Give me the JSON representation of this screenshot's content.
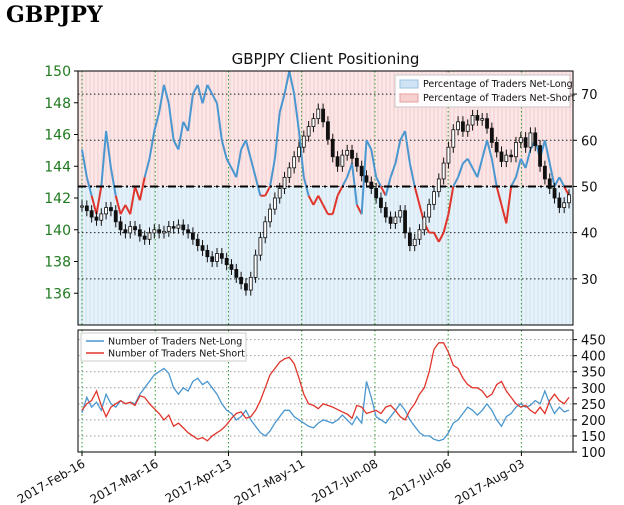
{
  "page_title": "GBPJPY",
  "chart_data": [
    {
      "type": "line",
      "title": "GBPJPY Client Positioning",
      "dates": [
        "2017-Feb-16",
        "2017-Mar-16",
        "2017-Apr-13",
        "2017-May-11",
        "2017-Jun-08",
        "2017-Jul-06",
        "2017-Aug-03"
      ],
      "price_axis": {
        "ylim": [
          134,
          150
        ],
        "ticks": [
          136,
          138,
          140,
          142,
          144,
          146,
          148,
          150
        ],
        "color": "#1f7a1f"
      },
      "percent_axis": {
        "ylim": [
          20,
          75
        ],
        "ticks": [
          30,
          40,
          50,
          60,
          70
        ]
      },
      "reference_line": 50,
      "legend": {
        "position": "top-right",
        "entries": [
          "Percentage of Traders Net-Long",
          "Percentage of Traders Net-Short"
        ]
      },
      "colors": {
        "long": "#4a97d0",
        "short": "#e0352b",
        "long_fill": "#cfe3f4",
        "short_fill": "#f6cfcf",
        "candles": "#111111",
        "grid": "#2e9a2e"
      },
      "price": [
        141.5,
        141.2,
        140.8,
        140.6,
        141.0,
        141.4,
        141.2,
        140.5,
        140.0,
        139.8,
        140.2,
        140.0,
        139.6,
        139.4,
        139.8,
        140.0,
        139.8,
        139.9,
        140.2,
        140.1,
        140.3,
        140.0,
        139.8,
        139.4,
        139.0,
        138.7,
        138.3,
        138.0,
        138.5,
        138.2,
        137.8,
        137.5,
        137.0,
        136.6,
        136.2,
        137.0,
        138.4,
        139.5,
        140.5,
        141.3,
        142.0,
        142.6,
        143.3,
        143.9,
        144.6,
        145.2,
        145.9,
        146.5,
        147.0,
        147.6,
        146.8,
        145.7,
        144.6,
        144.0,
        144.7,
        145.0,
        144.5,
        144.0,
        143.4,
        143.0,
        142.6,
        142.0,
        141.4,
        140.8,
        140.4,
        140.8,
        141.2,
        139.8,
        139.0,
        139.4,
        140.0,
        140.8,
        141.6,
        142.4,
        143.2,
        144.2,
        145.2,
        146.3,
        146.8,
        146.2,
        146.6,
        147.2,
        146.9,
        147.0,
        146.4,
        145.5,
        144.9,
        144.3,
        144.7,
        144.6,
        145.5,
        145.8,
        145.2,
        146.1,
        145.3,
        144.0,
        143.2,
        142.6,
        142.0,
        141.4,
        141.7,
        142.2
      ],
      "percent_long": [
        58,
        52,
        48,
        44,
        50,
        62,
        54,
        48,
        44,
        46,
        44,
        50,
        47,
        52,
        56,
        62,
        66,
        72,
        68,
        60,
        58,
        64,
        62,
        70,
        72,
        68,
        72,
        70,
        68,
        60,
        56,
        54,
        52,
        58,
        60,
        56,
        52,
        48,
        48,
        50,
        56,
        66,
        70,
        75,
        70,
        62,
        52,
        48,
        46,
        48,
        46,
        44,
        44,
        48,
        50,
        52,
        55,
        46,
        44,
        60,
        58,
        52,
        50,
        48,
        52,
        55,
        60,
        62,
        55,
        50,
        46,
        42,
        40,
        40,
        38,
        40,
        44,
        50,
        52,
        55,
        56,
        54,
        52,
        56,
        60,
        56,
        50,
        46,
        42,
        50,
        52,
        56,
        54,
        58,
        60,
        56,
        60,
        55,
        50,
        52,
        50,
        48
      ],
      "panels": {
        "price_panel": "top",
        "counts_panel": "bottom"
      }
    },
    {
      "type": "line",
      "legend": {
        "position": "top-left",
        "entries": [
          "Number of Traders Net-Long",
          "Number of Traders Net-Short"
        ]
      },
      "ylim": [
        100,
        480
      ],
      "ticks": [
        100,
        150,
        200,
        250,
        300,
        350,
        400,
        450
      ],
      "series": [
        {
          "name": "Number of Traders Net-Long",
          "color": "#4a97d0",
          "values": [
            222,
            270,
            240,
            255,
            230,
            280,
            250,
            240,
            260,
            250,
            255,
            250,
            280,
            300,
            320,
            340,
            350,
            360,
            345,
            300,
            280,
            300,
            290,
            320,
            330,
            310,
            320,
            300,
            280,
            250,
            230,
            220,
            200,
            210,
            230,
            200,
            180,
            160,
            150,
            165,
            190,
            210,
            230,
            230,
            210,
            200,
            190,
            180,
            175,
            190,
            200,
            195,
            190,
            200,
            215,
            200,
            185,
            210,
            190,
            320,
            270,
            210,
            200,
            190,
            210,
            230,
            250,
            230,
            200,
            180,
            160,
            150,
            150,
            140,
            135,
            140,
            160,
            190,
            200,
            220,
            240,
            230,
            215,
            230,
            250,
            230,
            200,
            180,
            210,
            220,
            240,
            250,
            240,
            245,
            260,
            250,
            290,
            250,
            220,
            240,
            225,
            230
          ]
        },
        {
          "name": "Number of Traders Net-Short",
          "color": "#e0352b",
          "values": [
            230,
            250,
            260,
            290,
            245,
            210,
            240,
            250,
            260,
            250,
            255,
            245,
            275,
            270,
            250,
            235,
            220,
            200,
            215,
            180,
            190,
            175,
            160,
            150,
            140,
            145,
            135,
            150,
            160,
            170,
            185,
            205,
            220,
            225,
            205,
            210,
            230,
            260,
            300,
            340,
            360,
            380,
            390,
            395,
            375,
            330,
            280,
            250,
            245,
            235,
            250,
            245,
            240,
            232,
            225,
            218,
            205,
            245,
            240,
            220,
            225,
            230,
            220,
            240,
            245,
            230,
            210,
            200,
            230,
            250,
            280,
            300,
            350,
            420,
            440,
            440,
            410,
            370,
            360,
            330,
            310,
            300,
            300,
            290,
            270,
            280,
            310,
            320,
            290,
            270,
            250,
            240,
            245,
            230,
            220,
            240,
            220,
            260,
            280,
            260,
            250,
            270
          ]
        }
      ]
    }
  ]
}
